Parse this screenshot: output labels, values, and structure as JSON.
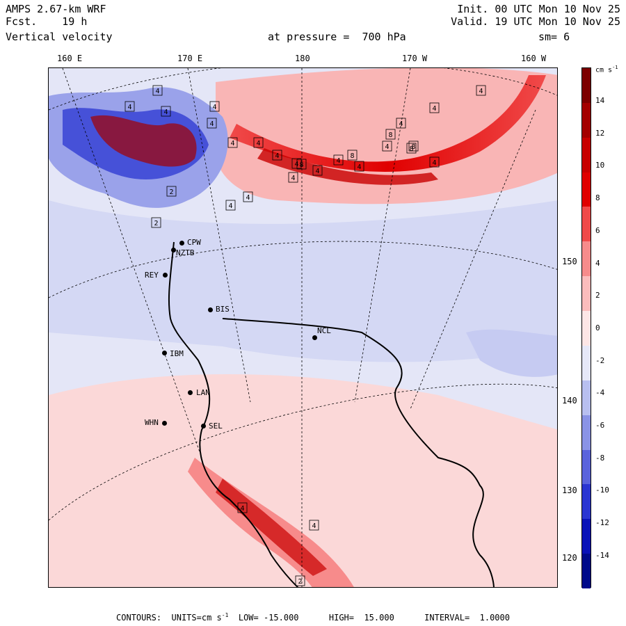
{
  "header": {
    "model": "AMPS 2.67-km WRF",
    "forecast": "Fcst.    19 h",
    "field": "Vertical velocity",
    "init": "Init. 00 UTC Mon 10 Nov 25",
    "valid": "Valid. 19 UTC Mon 10 Nov 25",
    "pressure_label": "at pressure =  700 hPa",
    "smoothing": "sm= 6"
  },
  "longitude_labels": [
    "160 E",
    "170 E",
    "180",
    "170 W",
    "160 W"
  ],
  "latitude_labels": [
    "150 W",
    "140 W",
    "130 W",
    "120 W"
  ],
  "legend": {
    "units_label": "cm s",
    "units_exp": "-1",
    "ticks": [
      "14",
      "12",
      "10",
      "8",
      "6",
      "4",
      "2",
      "0",
      "-2",
      "-4",
      "-6",
      "-8",
      "-10",
      "-12",
      "-14"
    ],
    "colors": [
      "#7d0000",
      "#a40000",
      "#c80000",
      "#e00000",
      "#f04a4a",
      "#f78b8b",
      "#fbbcbc",
      "#fde6e6",
      "#e6e8f8",
      "#b8bff0",
      "#8a93e6",
      "#5a63dc",
      "#2a35d2",
      "#0a12b8",
      "#000a8a"
    ]
  },
  "stations": [
    {
      "code": "CPW"
    },
    {
      "code": "NZTB"
    },
    {
      "code": "REY"
    },
    {
      "code": "BIS"
    },
    {
      "code": "NCL"
    },
    {
      "code": "IBM"
    },
    {
      "code": "LAN"
    },
    {
      "code": "WHN"
    },
    {
      "code": "SEL"
    }
  ],
  "max_markers": [
    "4",
    "4",
    "4",
    "4",
    "4",
    "4",
    "4",
    "4",
    "4",
    "4",
    "4",
    "4",
    "8",
    "4",
    "8",
    "4",
    "8",
    "8",
    "4",
    "8",
    "4",
    "4",
    "4",
    "4",
    "4",
    "2",
    "2",
    "4",
    "4",
    "2"
  ],
  "footer": "CONTOURS:  UNITS=cm s",
  "footer_exp": "-1",
  "footer_rest": "  LOW= -15.000      HIGH=  15.000      INTERVAL=  1.0000"
}
